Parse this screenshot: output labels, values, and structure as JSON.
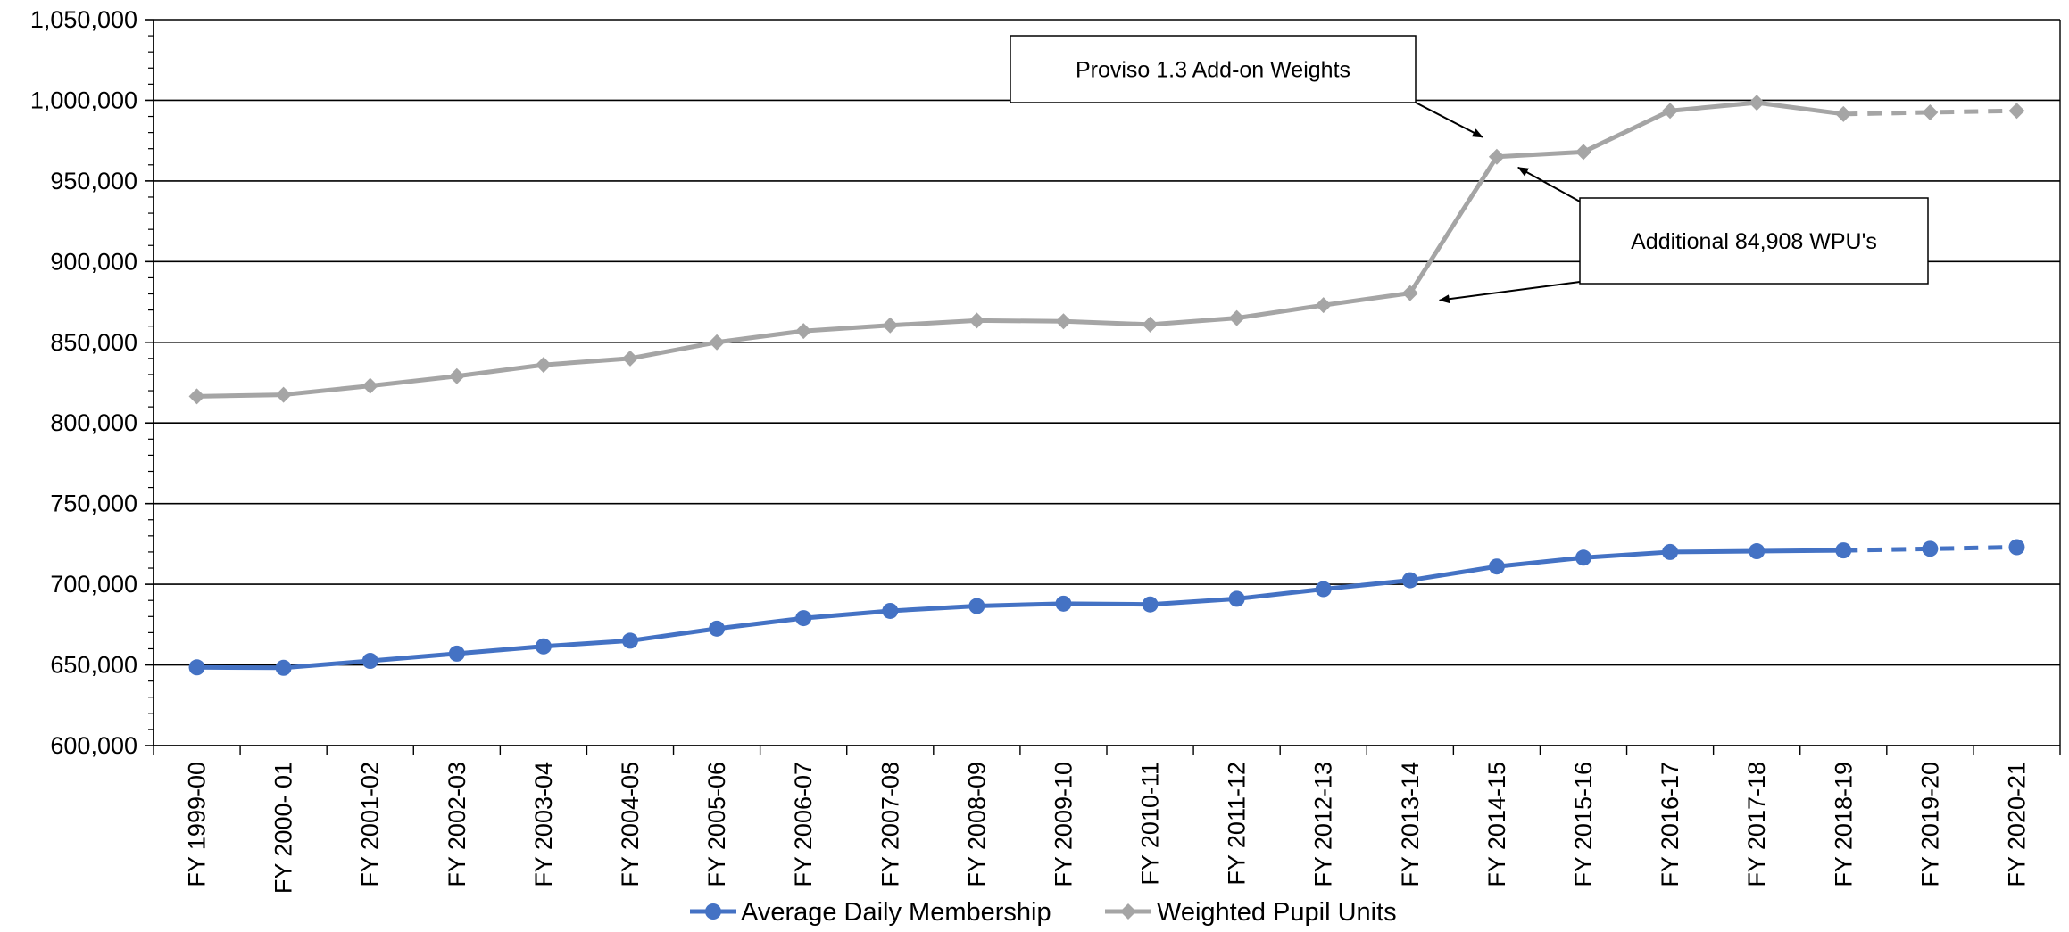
{
  "chart_data": {
    "type": "line",
    "title": "",
    "xlabel": "",
    "ylabel": "",
    "ylim": [
      600000,
      1050000
    ],
    "y_major_step": 50000,
    "y_minor_step": 10000,
    "y_tick_labels": [
      "600,000",
      "650,000",
      "700,000",
      "750,000",
      "800,000",
      "850,000",
      "900,000",
      "950,000",
      "1,000,000",
      "1,050,000"
    ],
    "grid": "horizontal-major",
    "legend_position": "bottom-center",
    "categories": [
      "FY 1999-00",
      "FY 2000- 01",
      "FY 2001-02",
      "FY 2002-03",
      "FY 2003-04",
      "FY 2004-05",
      "FY 2005-06",
      "FY 2006-07",
      "FY 2007-08",
      "FY 2008-09",
      "FY 2009-10",
      "FY 2010-11",
      "FY 2011-12",
      "FY 2012-13",
      "FY 2013-14",
      "FY 2014-15",
      "FY 2015-16",
      "FY 2016-17",
      "FY 2017-18",
      "FY 2018-19",
      "FY 2019-20",
      "FY 2020-21"
    ],
    "projected_from_index": 19,
    "series": [
      {
        "name": "Average Daily Membership",
        "color": "#4472C4",
        "marker": "circle",
        "values": [
          648500,
          648200,
          652500,
          657000,
          661500,
          665000,
          672500,
          679000,
          683500,
          686500,
          688000,
          687500,
          691000,
          697000,
          702500,
          711000,
          716500,
          720000,
          720500,
          721000,
          722000,
          723000
        ]
      },
      {
        "name": "Weighted Pupil Units",
        "color": "#A5A5A5",
        "marker": "diamond",
        "values": [
          816500,
          817500,
          823000,
          829000,
          836000,
          840000,
          850000,
          857000,
          860500,
          863500,
          863000,
          861000,
          865000,
          873000,
          880500,
          965000,
          968000,
          993500,
          998500,
          991500,
          992500,
          993500
        ]
      }
    ],
    "annotations": [
      {
        "text": "Proviso 1.3 Add-on Weights",
        "category_index": 15,
        "series": 1
      },
      {
        "text": "Additional 84,908 WPU's",
        "category_indices": [
          15,
          14
        ],
        "series": 1
      }
    ]
  }
}
